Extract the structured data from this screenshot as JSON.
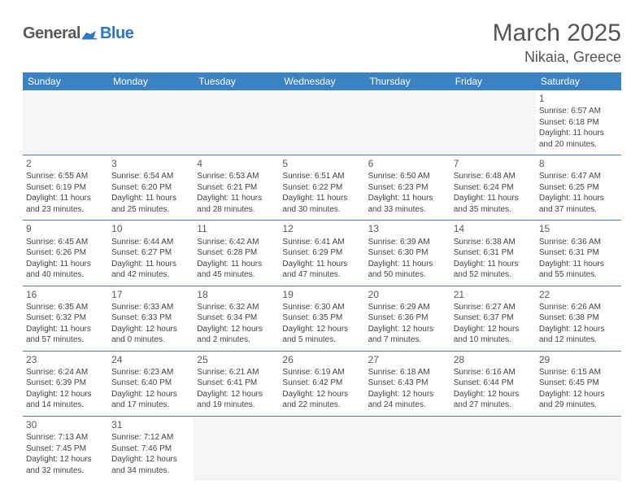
{
  "logo": {
    "word1": "General",
    "word2": "Blue"
  },
  "title": "March 2025",
  "location": "Nikaia, Greece",
  "colors": {
    "header_bg": "#3b82c4",
    "header_text": "#ffffff",
    "cell_border": "#3b82c4",
    "blank_bg": "#f5f5f5",
    "body_text": "#444444",
    "title_text": "#555555",
    "logo_gray": "#5a5a5a",
    "logo_blue": "#2b78c4"
  },
  "daysOfWeek": [
    "Sunday",
    "Monday",
    "Tuesday",
    "Wednesday",
    "Thursday",
    "Friday",
    "Saturday"
  ],
  "weeks": [
    [
      {
        "blank": true
      },
      {
        "blank": true
      },
      {
        "blank": true
      },
      {
        "blank": true
      },
      {
        "blank": true
      },
      {
        "blank": true
      },
      {
        "num": "1",
        "sunrise": "Sunrise: 6:57 AM",
        "sunset": "Sunset: 6:18 PM",
        "day1": "Daylight: 11 hours",
        "day2": "and 20 minutes."
      }
    ],
    [
      {
        "num": "2",
        "sunrise": "Sunrise: 6:55 AM",
        "sunset": "Sunset: 6:19 PM",
        "day1": "Daylight: 11 hours",
        "day2": "and 23 minutes."
      },
      {
        "num": "3",
        "sunrise": "Sunrise: 6:54 AM",
        "sunset": "Sunset: 6:20 PM",
        "day1": "Daylight: 11 hours",
        "day2": "and 25 minutes."
      },
      {
        "num": "4",
        "sunrise": "Sunrise: 6:53 AM",
        "sunset": "Sunset: 6:21 PM",
        "day1": "Daylight: 11 hours",
        "day2": "and 28 minutes."
      },
      {
        "num": "5",
        "sunrise": "Sunrise: 6:51 AM",
        "sunset": "Sunset: 6:22 PM",
        "day1": "Daylight: 11 hours",
        "day2": "and 30 minutes."
      },
      {
        "num": "6",
        "sunrise": "Sunrise: 6:50 AM",
        "sunset": "Sunset: 6:23 PM",
        "day1": "Daylight: 11 hours",
        "day2": "and 33 minutes."
      },
      {
        "num": "7",
        "sunrise": "Sunrise: 6:48 AM",
        "sunset": "Sunset: 6:24 PM",
        "day1": "Daylight: 11 hours",
        "day2": "and 35 minutes."
      },
      {
        "num": "8",
        "sunrise": "Sunrise: 6:47 AM",
        "sunset": "Sunset: 6:25 PM",
        "day1": "Daylight: 11 hours",
        "day2": "and 37 minutes."
      }
    ],
    [
      {
        "num": "9",
        "sunrise": "Sunrise: 6:45 AM",
        "sunset": "Sunset: 6:26 PM",
        "day1": "Daylight: 11 hours",
        "day2": "and 40 minutes."
      },
      {
        "num": "10",
        "sunrise": "Sunrise: 6:44 AM",
        "sunset": "Sunset: 6:27 PM",
        "day1": "Daylight: 11 hours",
        "day2": "and 42 minutes."
      },
      {
        "num": "11",
        "sunrise": "Sunrise: 6:42 AM",
        "sunset": "Sunset: 6:28 PM",
        "day1": "Daylight: 11 hours",
        "day2": "and 45 minutes."
      },
      {
        "num": "12",
        "sunrise": "Sunrise: 6:41 AM",
        "sunset": "Sunset: 6:29 PM",
        "day1": "Daylight: 11 hours",
        "day2": "and 47 minutes."
      },
      {
        "num": "13",
        "sunrise": "Sunrise: 6:39 AM",
        "sunset": "Sunset: 6:30 PM",
        "day1": "Daylight: 11 hours",
        "day2": "and 50 minutes."
      },
      {
        "num": "14",
        "sunrise": "Sunrise: 6:38 AM",
        "sunset": "Sunset: 6:31 PM",
        "day1": "Daylight: 11 hours",
        "day2": "and 52 minutes."
      },
      {
        "num": "15",
        "sunrise": "Sunrise: 6:36 AM",
        "sunset": "Sunset: 6:31 PM",
        "day1": "Daylight: 11 hours",
        "day2": "and 55 minutes."
      }
    ],
    [
      {
        "num": "16",
        "sunrise": "Sunrise: 6:35 AM",
        "sunset": "Sunset: 6:32 PM",
        "day1": "Daylight: 11 hours",
        "day2": "and 57 minutes."
      },
      {
        "num": "17",
        "sunrise": "Sunrise: 6:33 AM",
        "sunset": "Sunset: 6:33 PM",
        "day1": "Daylight: 12 hours",
        "day2": "and 0 minutes."
      },
      {
        "num": "18",
        "sunrise": "Sunrise: 6:32 AM",
        "sunset": "Sunset: 6:34 PM",
        "day1": "Daylight: 12 hours",
        "day2": "and 2 minutes."
      },
      {
        "num": "19",
        "sunrise": "Sunrise: 6:30 AM",
        "sunset": "Sunset: 6:35 PM",
        "day1": "Daylight: 12 hours",
        "day2": "and 5 minutes."
      },
      {
        "num": "20",
        "sunrise": "Sunrise: 6:29 AM",
        "sunset": "Sunset: 6:36 PM",
        "day1": "Daylight: 12 hours",
        "day2": "and 7 minutes."
      },
      {
        "num": "21",
        "sunrise": "Sunrise: 6:27 AM",
        "sunset": "Sunset: 6:37 PM",
        "day1": "Daylight: 12 hours",
        "day2": "and 10 minutes."
      },
      {
        "num": "22",
        "sunrise": "Sunrise: 6:26 AM",
        "sunset": "Sunset: 6:38 PM",
        "day1": "Daylight: 12 hours",
        "day2": "and 12 minutes."
      }
    ],
    [
      {
        "num": "23",
        "sunrise": "Sunrise: 6:24 AM",
        "sunset": "Sunset: 6:39 PM",
        "day1": "Daylight: 12 hours",
        "day2": "and 14 minutes."
      },
      {
        "num": "24",
        "sunrise": "Sunrise: 6:23 AM",
        "sunset": "Sunset: 6:40 PM",
        "day1": "Daylight: 12 hours",
        "day2": "and 17 minutes."
      },
      {
        "num": "25",
        "sunrise": "Sunrise: 6:21 AM",
        "sunset": "Sunset: 6:41 PM",
        "day1": "Daylight: 12 hours",
        "day2": "and 19 minutes."
      },
      {
        "num": "26",
        "sunrise": "Sunrise: 6:19 AM",
        "sunset": "Sunset: 6:42 PM",
        "day1": "Daylight: 12 hours",
        "day2": "and 22 minutes."
      },
      {
        "num": "27",
        "sunrise": "Sunrise: 6:18 AM",
        "sunset": "Sunset: 6:43 PM",
        "day1": "Daylight: 12 hours",
        "day2": "and 24 minutes."
      },
      {
        "num": "28",
        "sunrise": "Sunrise: 6:16 AM",
        "sunset": "Sunset: 6:44 PM",
        "day1": "Daylight: 12 hours",
        "day2": "and 27 minutes."
      },
      {
        "num": "29",
        "sunrise": "Sunrise: 6:15 AM",
        "sunset": "Sunset: 6:45 PM",
        "day1": "Daylight: 12 hours",
        "day2": "and 29 minutes."
      }
    ],
    [
      {
        "num": "30",
        "sunrise": "Sunrise: 7:13 AM",
        "sunset": "Sunset: 7:45 PM",
        "day1": "Daylight: 12 hours",
        "day2": "and 32 minutes."
      },
      {
        "num": "31",
        "sunrise": "Sunrise: 7:12 AM",
        "sunset": "Sunset: 7:46 PM",
        "day1": "Daylight: 12 hours",
        "day2": "and 34 minutes."
      },
      {
        "blank": true
      },
      {
        "blank": true
      },
      {
        "blank": true
      },
      {
        "blank": true
      },
      {
        "blank": true
      }
    ]
  ]
}
